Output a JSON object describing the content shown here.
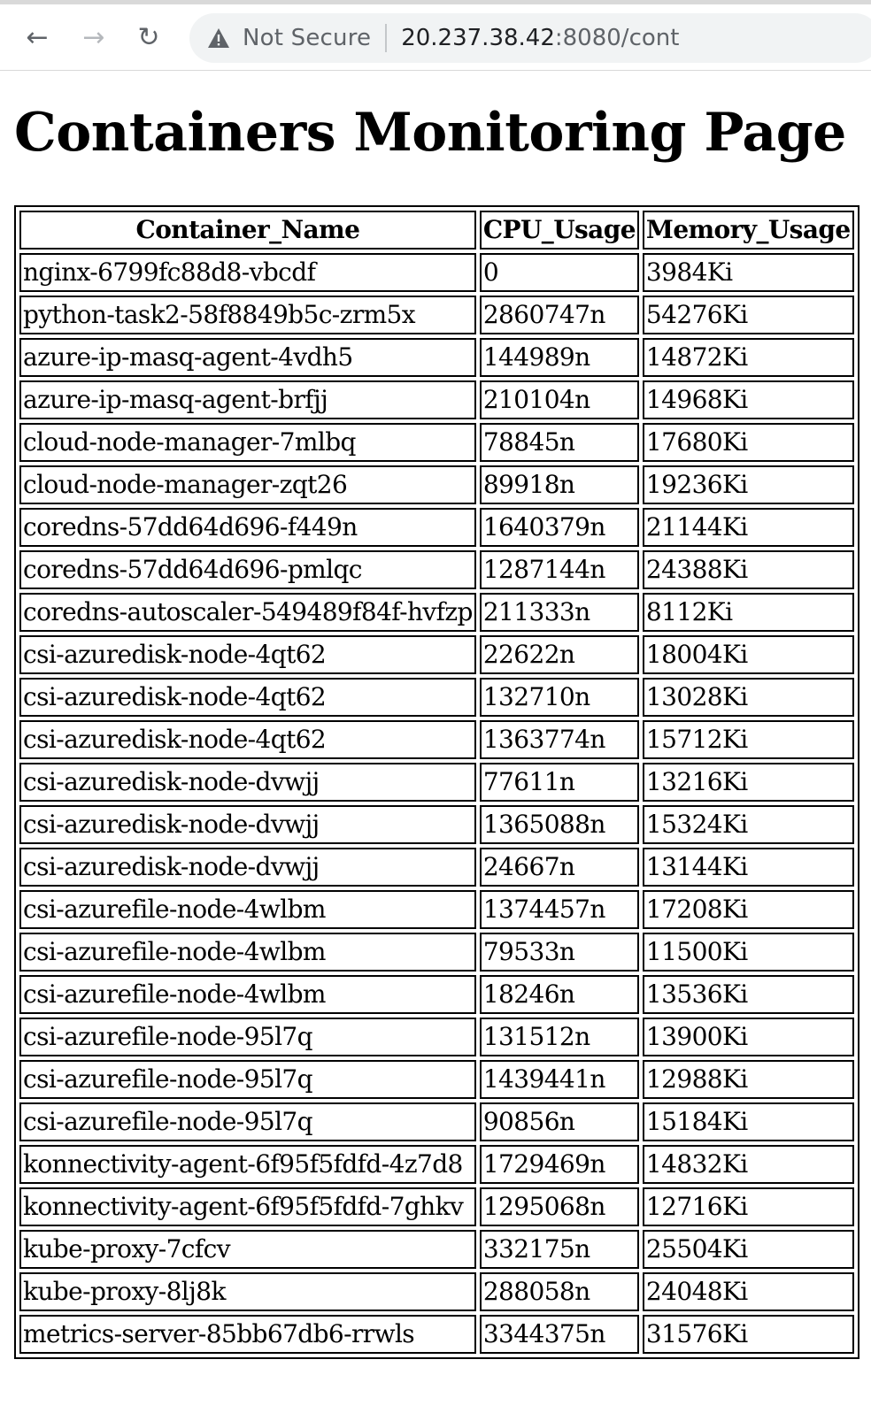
{
  "browser": {
    "security_label": "Not Secure",
    "url_host": "20.237.38.42",
    "url_rest": ":8080/cont",
    "icons": {
      "back": "arrow-left-icon",
      "forward": "arrow-right-icon",
      "reload": "reload-icon",
      "security": "warning-triangle-icon"
    }
  },
  "page": {
    "title": "Containers Monitoring Page"
  },
  "table": {
    "headers": [
      "Container_Name",
      "CPU_Usage",
      "Memory_Usage"
    ],
    "rows": [
      [
        "nginx-6799fc88d8-vbcdf",
        "0",
        "3984Ki"
      ],
      [
        "python-task2-58f8849b5c-zrm5x",
        "2860747n",
        "54276Ki"
      ],
      [
        "azure-ip-masq-agent-4vdh5",
        "144989n",
        "14872Ki"
      ],
      [
        "azure-ip-masq-agent-brfjj",
        "210104n",
        "14968Ki"
      ],
      [
        "cloud-node-manager-7mlbq",
        "78845n",
        "17680Ki"
      ],
      [
        "cloud-node-manager-zqt26",
        "89918n",
        "19236Ki"
      ],
      [
        "coredns-57dd64d696-f449n",
        "1640379n",
        "21144Ki"
      ],
      [
        "coredns-57dd64d696-pmlqc",
        "1287144n",
        "24388Ki"
      ],
      [
        "coredns-autoscaler-549489f84f-hvfzp",
        "211333n",
        "8112Ki"
      ],
      [
        "csi-azuredisk-node-4qt62",
        "22622n",
        "18004Ki"
      ],
      [
        "csi-azuredisk-node-4qt62",
        "132710n",
        "13028Ki"
      ],
      [
        "csi-azuredisk-node-4qt62",
        "1363774n",
        "15712Ki"
      ],
      [
        "csi-azuredisk-node-dvwjj",
        "77611n",
        "13216Ki"
      ],
      [
        "csi-azuredisk-node-dvwjj",
        "1365088n",
        "15324Ki"
      ],
      [
        "csi-azuredisk-node-dvwjj",
        "24667n",
        "13144Ki"
      ],
      [
        "csi-azurefile-node-4wlbm",
        "1374457n",
        "17208Ki"
      ],
      [
        "csi-azurefile-node-4wlbm",
        "79533n",
        "11500Ki"
      ],
      [
        "csi-azurefile-node-4wlbm",
        "18246n",
        "13536Ki"
      ],
      [
        "csi-azurefile-node-95l7q",
        "131512n",
        "13900Ki"
      ],
      [
        "csi-azurefile-node-95l7q",
        "1439441n",
        "12988Ki"
      ],
      [
        "csi-azurefile-node-95l7q",
        "90856n",
        "15184Ki"
      ],
      [
        "konnectivity-agent-6f95f5fdfd-4z7d8",
        "1729469n",
        "14832Ki"
      ],
      [
        "konnectivity-agent-6f95f5fdfd-7ghkv",
        "1295068n",
        "12716Ki"
      ],
      [
        "kube-proxy-7cfcv",
        "332175n",
        "25504Ki"
      ],
      [
        "kube-proxy-8lj8k",
        "288058n",
        "24048Ki"
      ],
      [
        "metrics-server-85bb67db6-rrwls",
        "3344375n",
        "31576Ki"
      ]
    ]
  }
}
